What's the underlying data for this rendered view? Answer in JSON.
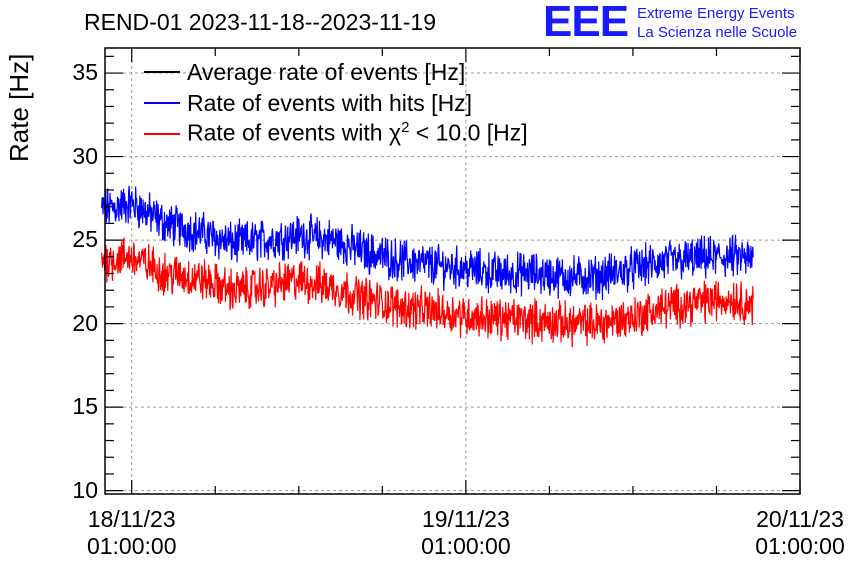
{
  "chart_data": {
    "type": "line",
    "title": "REND-01 2023-11-18--2023-11-19",
    "ylabel": "Rate [Hz]",
    "xlabel": "",
    "ylim": [
      9.8,
      36.5
    ],
    "yticks": [
      "10",
      "15",
      "20",
      "25",
      "30",
      "35"
    ],
    "yticks_values": [
      10,
      15,
      20,
      25,
      30,
      35
    ],
    "xlim": [
      -0.08,
      2.0
    ],
    "xticks": [
      {
        "value": 0,
        "date": "18/11/23",
        "time": "01:00:00"
      },
      {
        "value": 1,
        "date": "19/11/23",
        "time": "01:00:00"
      },
      {
        "value": 2,
        "date": "20/11/23",
        "time": "01:00:00"
      }
    ],
    "grid": true,
    "legend_position": "top-left",
    "series": [
      {
        "name": "Average rate of events [Hz]",
        "color": "#000000",
        "x": [],
        "values": []
      },
      {
        "name": "Rate of events with hits [Hz]",
        "color": "#0000ff",
        "x": [
          -0.09,
          0.0,
          0.1,
          0.2,
          0.3,
          0.4,
          0.5,
          0.6,
          0.7,
          0.8,
          0.9,
          1.0,
          1.1,
          1.2,
          1.3,
          1.4,
          1.5,
          1.6,
          1.7,
          1.8,
          1.86
        ],
        "values": [
          26.8,
          27.2,
          26.0,
          25.5,
          24.8,
          25.0,
          25.3,
          25.0,
          24.3,
          23.8,
          23.5,
          23.3,
          23.0,
          23.0,
          22.8,
          22.8,
          23.3,
          23.7,
          23.9,
          24.0,
          23.8
        ]
      },
      {
        "name": "Rate of events with χ2 < 10.0 [Hz]",
        "color": "#ff0000",
        "x": [
          -0.09,
          0.0,
          0.1,
          0.2,
          0.3,
          0.4,
          0.5,
          0.6,
          0.7,
          0.8,
          0.9,
          1.0,
          1.1,
          1.2,
          1.3,
          1.4,
          1.5,
          1.6,
          1.7,
          1.8,
          1.86
        ],
        "values": [
          23.8,
          24.0,
          23.0,
          22.7,
          22.0,
          22.2,
          22.6,
          22.2,
          21.5,
          21.0,
          20.8,
          20.5,
          20.3,
          20.2,
          20.0,
          20.0,
          20.4,
          21.0,
          21.3,
          21.5,
          21.1
        ]
      }
    ]
  },
  "header": {
    "logo": "EEE",
    "logo_line1": "Extreme Energy Events",
    "logo_line2": "La Scienza nelle Scuole"
  },
  "legend": {
    "item1": "Average rate of events [Hz]",
    "item2": "Rate of events with hits [Hz]",
    "item3_prefix": "Rate of events with ",
    "item3_symbol": "χ",
    "item3_sup": "2",
    "item3_suffix": " < 10.0 [Hz]"
  },
  "colors": {
    "black": "#000000",
    "blue": "#0000ff",
    "red": "#ff0000",
    "logo": "#1a1aff"
  }
}
